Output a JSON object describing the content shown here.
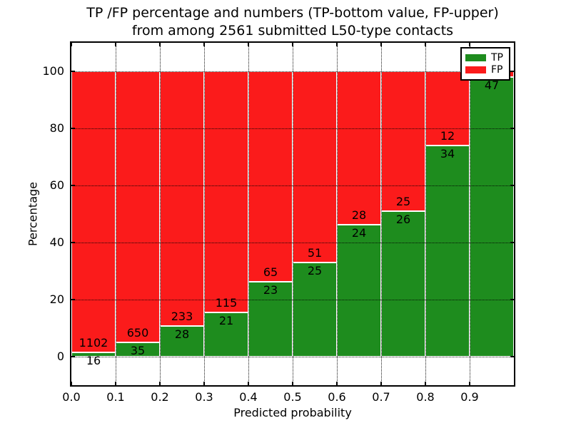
{
  "title": {
    "line1": "TP /FP percentage and numbers (TP-bottom value, FP-upper)",
    "line2": "from among 2561 submitted L50-type contacts"
  },
  "axes": {
    "xlabel": "Predicted probability",
    "ylabel": "Percentage",
    "x_ticks": [
      "0.0",
      "0.1",
      "0.2",
      "0.3",
      "0.4",
      "0.5",
      "0.6",
      "0.7",
      "0.8",
      "0.9"
    ],
    "y_ticks": [
      "0",
      "20",
      "40",
      "60",
      "80",
      "100"
    ]
  },
  "legend": {
    "position": "upper right",
    "items": [
      {
        "label": "TP",
        "color": "#1e8c1e"
      },
      {
        "label": "FP",
        "color": "#fb1b1b"
      }
    ]
  },
  "colors": {
    "tp": "#1e8c1e",
    "fp": "#fb1b1b",
    "grid": "#000000",
    "bar_edge": "#ffffff",
    "background": "#ffffff"
  },
  "chart_data": {
    "type": "bar",
    "stacked": true,
    "normalized_to_percent": true,
    "title": "TP /FP percentage and numbers (TP-bottom value, FP-upper) from among 2561 submitted L50-type contacts",
    "xlabel": "Predicted probability",
    "ylabel": "Percentage",
    "xlim": [
      0.0,
      1.0
    ],
    "ylim": [
      -10,
      110
    ],
    "grid": true,
    "legend_position": "upper right",
    "total_contacts": 2561,
    "categories": [
      "0.0-0.1",
      "0.1-0.2",
      "0.2-0.3",
      "0.3-0.4",
      "0.4-0.5",
      "0.5-0.6",
      "0.6-0.7",
      "0.7-0.8",
      "0.8-0.9",
      "0.9-1.0"
    ],
    "series": [
      {
        "name": "TP",
        "values": [
          16,
          35,
          28,
          21,
          23,
          25,
          24,
          26,
          34,
          47
        ]
      },
      {
        "name": "FP",
        "values": [
          1102,
          650,
          233,
          115,
          65,
          51,
          28,
          25,
          12,
          1
        ]
      }
    ],
    "tp_pct": [
      1.43,
      5.11,
      10.73,
      15.44,
      26.14,
      32.89,
      46.15,
      50.98,
      73.91,
      97.92
    ],
    "bins": [
      {
        "x0": 0.0,
        "x1": 0.1,
        "tp": 16,
        "fp": 1102,
        "fp_label_visible": true
      },
      {
        "x0": 0.1,
        "x1": 0.2,
        "tp": 35,
        "fp": 650,
        "fp_label_visible": true
      },
      {
        "x0": 0.2,
        "x1": 0.3,
        "tp": 28,
        "fp": 233,
        "fp_label_visible": true
      },
      {
        "x0": 0.3,
        "x1": 0.4,
        "tp": 21,
        "fp": 115,
        "fp_label_visible": true
      },
      {
        "x0": 0.4,
        "x1": 0.5,
        "tp": 23,
        "fp": 65,
        "fp_label_visible": true
      },
      {
        "x0": 0.5,
        "x1": 0.6,
        "tp": 25,
        "fp": 51,
        "fp_label_visible": true
      },
      {
        "x0": 0.6,
        "x1": 0.7,
        "tp": 24,
        "fp": 28,
        "fp_label_visible": true
      },
      {
        "x0": 0.7,
        "x1": 0.8,
        "tp": 26,
        "fp": 25,
        "fp_label_visible": true
      },
      {
        "x0": 0.8,
        "x1": 0.9,
        "tp": 34,
        "fp": 12,
        "fp_label_visible": true
      },
      {
        "x0": 0.9,
        "x1": 1.0,
        "tp": 47,
        "fp": 1,
        "fp_label_visible": false
      }
    ]
  }
}
